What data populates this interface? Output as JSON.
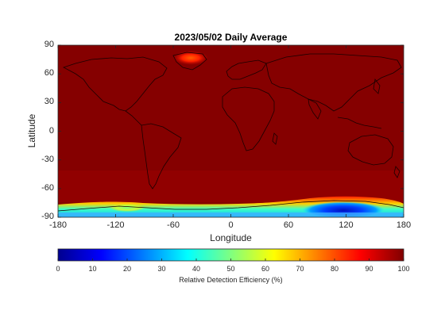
{
  "map": {
    "title": "2023/05/02 Daily Average",
    "xlabel": "Longitude",
    "ylabel": "Latitude",
    "x_ticks": [
      "-180",
      "-120",
      "-60",
      "0",
      "60",
      "120",
      "180"
    ],
    "y_ticks": [
      "90",
      "60",
      "30",
      "0",
      "-30",
      "-60",
      "-90"
    ],
    "xlim": [
      -180,
      180
    ],
    "ylim": [
      -90,
      90
    ],
    "background_color": "#850000",
    "colormap": "jet"
  },
  "colorbar": {
    "label": "Relative Detection Efficiency (%)",
    "ticks": [
      "0",
      "10",
      "20",
      "30",
      "40",
      "50",
      "60",
      "70",
      "80",
      "90",
      "100"
    ],
    "range": [
      0,
      100
    ]
  },
  "chart_data": {
    "type": "heatmap",
    "title": "2023/05/02 Daily Average",
    "xlabel": "Longitude",
    "ylabel": "Latitude",
    "xlim": [
      -180,
      180
    ],
    "ylim": [
      -90,
      90
    ],
    "value_range": [
      0,
      100
    ],
    "value_label": "Relative Detection Efficiency (%)",
    "regions": [
      {
        "region": "most of globe",
        "value": 98
      },
      {
        "region": "central Greenland",
        "value": 80
      },
      {
        "region": "Antarctic coastal band",
        "value": 85
      },
      {
        "region": "West Antarctica interior",
        "value": 40
      },
      {
        "region": "East Antarctica interior near 120E",
        "value": 10
      }
    ]
  }
}
